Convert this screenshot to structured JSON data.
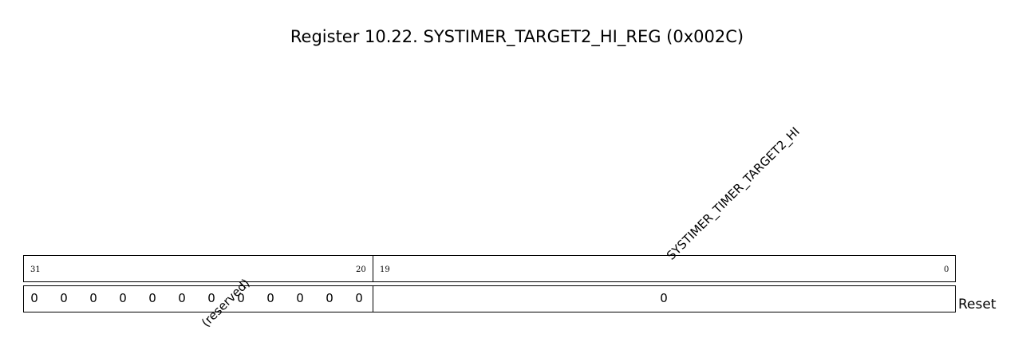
{
  "title": "Register 10.22. SYSTIMER_TARGET2_HI_REG (0x002C)",
  "fields": [
    {
      "name": "(reserved)",
      "msb": "31",
      "lsb": "20",
      "reset": [
        "0",
        "0",
        "0",
        "0",
        "0",
        "0",
        "0",
        "0",
        "0",
        "0",
        "0",
        "0"
      ]
    },
    {
      "name": "SYSTIMER_TIMER_TARGET2_HI",
      "msb": "19",
      "lsb": "0",
      "reset": "0"
    }
  ],
  "reset_label": "Reset"
}
